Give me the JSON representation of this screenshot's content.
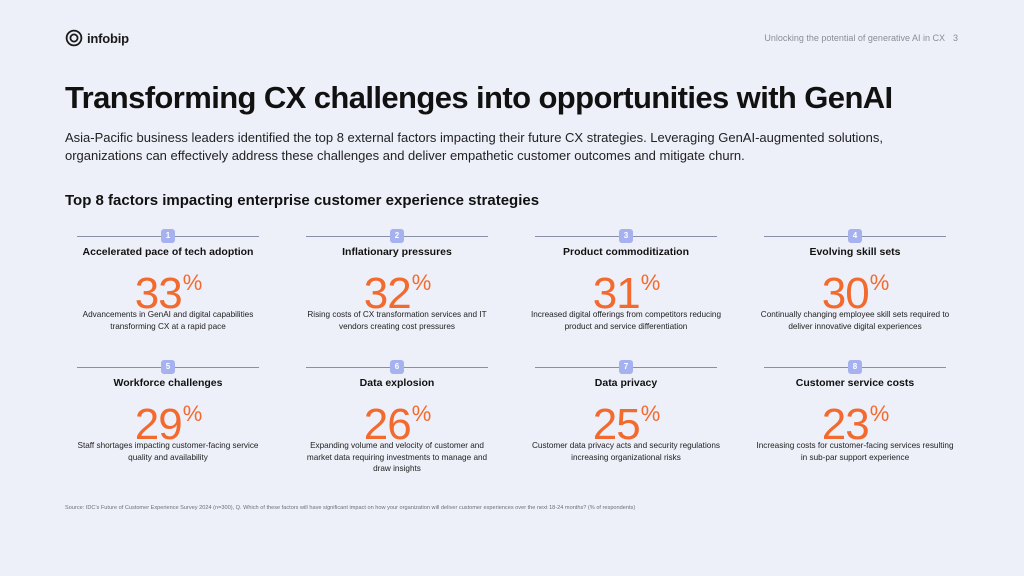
{
  "brand": {
    "name": "infobip"
  },
  "header": {
    "doc_title": "Unlocking the potential of generative AI in CX",
    "page_number": "3"
  },
  "title": "Transforming CX challenges into opportunities with GenAI",
  "intro": "Asia-Pacific business leaders identified the top 8 external factors impacting their future CX strategies. Leveraging GenAI-augmented solutions, organizations can effectively address these challenges and deliver empathetic customer outcomes and mitigate churn.",
  "section_title": "Top 8 factors impacting enterprise customer experience strategies",
  "factors": [
    {
      "rank": "1",
      "title": "Accelerated pace of tech adoption",
      "value": "33",
      "unit": "%",
      "description": "Advancements in GenAI and digital capabilities transforming CX at a rapid pace"
    },
    {
      "rank": "2",
      "title": "Inflationary pressures",
      "value": "32",
      "unit": "%",
      "description": "Rising costs of CX transformation services and IT vendors creating cost pressures"
    },
    {
      "rank": "3",
      "title": "Product commoditization",
      "value": "31",
      "unit": "%",
      "description": "Increased digital offerings from competitors reducing product and service differentiation"
    },
    {
      "rank": "4",
      "title": "Evolving skill sets",
      "value": "30",
      "unit": "%",
      "description": "Continually changing employee skill sets required to deliver innovative digital experiences"
    },
    {
      "rank": "5",
      "title": "Workforce challenges",
      "value": "29",
      "unit": "%",
      "description": "Staff shortages impacting customer-facing service quality and availability"
    },
    {
      "rank": "6",
      "title": "Data explosion",
      "value": "26",
      "unit": "%",
      "description": "Expanding volume and velocity of customer and market data requiring investments to manage and draw insights"
    },
    {
      "rank": "7",
      "title": "Data privacy",
      "value": "25",
      "unit": "%",
      "description": "Customer data privacy acts and security regulations increasing organizational risks"
    },
    {
      "rank": "8",
      "title": "Customer service costs",
      "value": "23",
      "unit": "%",
      "description": "Increasing costs for customer-facing services resulting in sub-par support experience"
    }
  ],
  "source": "Source: IDC's Future of Customer Experience Survey 2024 (n=300), Q. Which of these factors will have significant impact on how your organization will deliver customer experiences over the next 18-24 months? (% of respondents)",
  "colors": {
    "background": "#eef0f9",
    "accent": "#f26a2e",
    "badge": "#a6b1ef"
  },
  "icons": {
    "logo": "infobip-logo-icon"
  }
}
